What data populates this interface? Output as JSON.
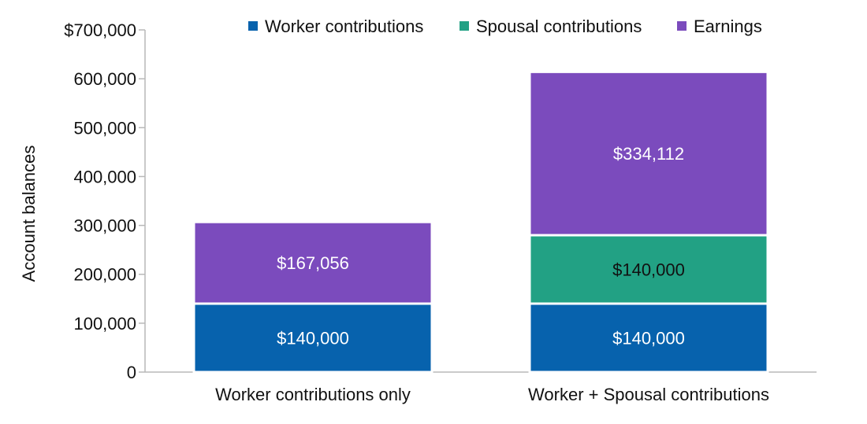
{
  "chart_data": {
    "type": "bar",
    "stacked": true,
    "categories": [
      "Worker contributions only",
      "Worker + Spousal contributions"
    ],
    "series": [
      {
        "name": "Worker contributions",
        "color": "#0762ad",
        "label_color": "#ffffff",
        "values": [
          140000,
          140000
        ],
        "labels": [
          "$140,000",
          "$140,000"
        ]
      },
      {
        "name": "Spousal contributions",
        "color": "#22a184",
        "label_color": "#111111",
        "values": [
          0,
          140000
        ],
        "labels": [
          "",
          "$140,000"
        ]
      },
      {
        "name": "Earnings",
        "color": "#7b4bbd",
        "label_color": "#ffffff",
        "values": [
          167056,
          334112
        ],
        "labels": [
          "$167,056",
          "$334,112"
        ]
      }
    ],
    "ylabel": "Account balances",
    "ylim": [
      0,
      700000
    ],
    "yticks": [
      0,
      100000,
      200000,
      300000,
      400000,
      500000,
      600000,
      700000
    ],
    "ytick_labels": [
      "0",
      "100,000",
      "200,000",
      "300,000",
      "400,000",
      "500,000",
      "600,000",
      "$700,000"
    ],
    "legend_position": "top",
    "grid": false
  }
}
